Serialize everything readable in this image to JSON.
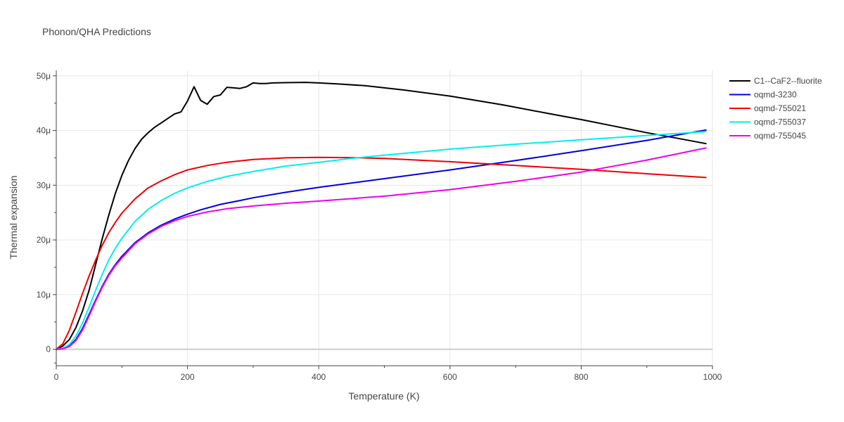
{
  "chart_data": {
    "type": "line",
    "title": "Phonon/QHA Predictions",
    "xlabel": "Temperature (K)",
    "ylabel": "Thermal expansion",
    "xlim": [
      0,
      1000
    ],
    "ylim": [
      -3,
      51
    ],
    "xticks": [
      0,
      200,
      400,
      600,
      800,
      1000
    ],
    "xtick_labels": [
      "0",
      "200",
      "400",
      "600",
      "800",
      "1000"
    ],
    "yticks": [
      0,
      10,
      20,
      30,
      40,
      50
    ],
    "ytick_labels": [
      "0",
      "10μ",
      "20μ",
      "30μ",
      "40μ",
      "50μ"
    ],
    "y_unit_note": "values in units of 1e-6",
    "legend_position": "top-right outside",
    "grid": true,
    "series": [
      {
        "name": "C1--CaF2--fluorite",
        "color": "#000000",
        "x": [
          0,
          10,
          20,
          30,
          40,
          50,
          60,
          70,
          80,
          90,
          100,
          110,
          120,
          130,
          140,
          150,
          160,
          170,
          180,
          190,
          200,
          210,
          220,
          230,
          240,
          250,
          260,
          270,
          280,
          290,
          300,
          310,
          320,
          330,
          350,
          380,
          400,
          430,
          470,
          530,
          600,
          680,
          750,
          800,
          850,
          900,
          950,
          990
        ],
        "y": [
          0,
          0.6,
          1.8,
          4.0,
          7.0,
          10.8,
          15.5,
          20.2,
          24.5,
          28.5,
          31.8,
          34.5,
          36.7,
          38.4,
          39.6,
          40.6,
          41.4,
          42.2,
          43.0,
          43.4,
          45.4,
          48.0,
          45.5,
          44.8,
          46.2,
          46.5,
          47.9,
          47.8,
          47.7,
          48.0,
          48.7,
          48.6,
          48.6,
          48.7,
          48.75,
          48.8,
          48.7,
          48.5,
          48.2,
          47.4,
          46.3,
          44.7,
          43.1,
          42.0,
          40.8,
          39.6,
          38.5,
          37.6
        ]
      },
      {
        "name": "oqmd-3230",
        "color": "#0000dd",
        "x": [
          0,
          10,
          20,
          30,
          40,
          50,
          60,
          70,
          80,
          90,
          100,
          120,
          140,
          160,
          180,
          200,
          220,
          250,
          280,
          300,
          350,
          400,
          500,
          600,
          700,
          800,
          900,
          990
        ],
        "y": [
          0,
          0.1,
          0.6,
          1.8,
          3.8,
          6.4,
          9.0,
          11.5,
          13.7,
          15.5,
          17.0,
          19.5,
          21.3,
          22.7,
          23.8,
          24.7,
          25.5,
          26.5,
          27.2,
          27.7,
          28.7,
          29.6,
          31.2,
          32.8,
          34.5,
          36.3,
          38.2,
          40.1
        ]
      },
      {
        "name": "oqmd-755021",
        "color": "#ee0000",
        "x": [
          0,
          10,
          20,
          30,
          40,
          50,
          60,
          70,
          80,
          90,
          100,
          120,
          140,
          160,
          180,
          200,
          230,
          260,
          300,
          350,
          400,
          450,
          500,
          600,
          700,
          800,
          900,
          990
        ],
        "y": [
          0,
          1.0,
          3.5,
          6.8,
          10.2,
          13.4,
          16.3,
          19.0,
          21.3,
          23.2,
          24.9,
          27.5,
          29.5,
          30.8,
          31.9,
          32.8,
          33.6,
          34.2,
          34.7,
          35.0,
          35.1,
          35.05,
          34.9,
          34.3,
          33.6,
          32.9,
          32.1,
          31.4
        ]
      },
      {
        "name": "oqmd-755037",
        "color": "#00eeee",
        "x": [
          0,
          10,
          20,
          30,
          40,
          50,
          60,
          70,
          80,
          90,
          100,
          120,
          140,
          160,
          180,
          200,
          230,
          260,
          300,
          350,
          400,
          450,
          500,
          600,
          700,
          800,
          900,
          990
        ],
        "y": [
          0,
          0.2,
          0.9,
          2.4,
          4.8,
          7.7,
          10.8,
          13.7,
          16.3,
          18.5,
          20.3,
          23.4,
          25.6,
          27.2,
          28.5,
          29.5,
          30.7,
          31.6,
          32.5,
          33.5,
          34.2,
          34.9,
          35.5,
          36.6,
          37.5,
          38.3,
          39.1,
          39.8
        ]
      },
      {
        "name": "oqmd-755045",
        "color": "#ee00ee",
        "x": [
          0,
          10,
          20,
          30,
          40,
          50,
          60,
          70,
          80,
          90,
          100,
          120,
          140,
          160,
          180,
          200,
          230,
          260,
          300,
          350,
          400,
          500,
          600,
          700,
          800,
          900,
          990
        ],
        "y": [
          0,
          0.1,
          0.5,
          1.6,
          3.5,
          6.1,
          8.8,
          11.3,
          13.5,
          15.3,
          16.7,
          19.3,
          21.1,
          22.5,
          23.5,
          24.3,
          25.1,
          25.7,
          26.2,
          26.7,
          27.1,
          28.0,
          29.2,
          30.7,
          32.4,
          34.6,
          36.8
        ]
      }
    ]
  }
}
